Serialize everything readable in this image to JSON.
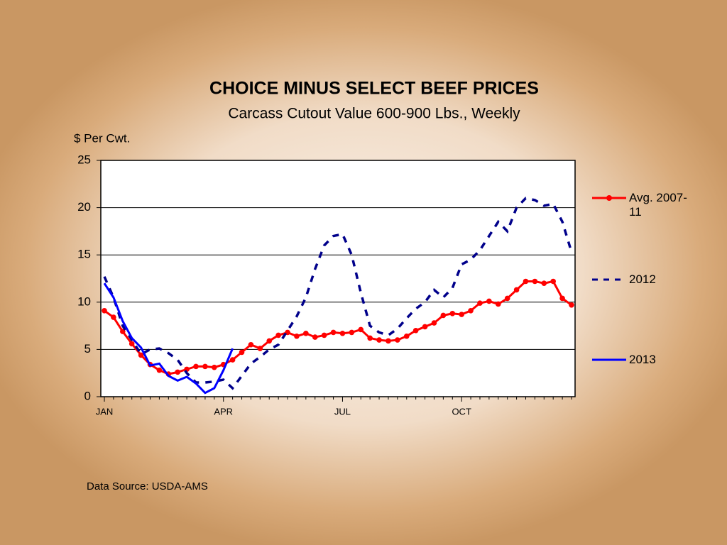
{
  "chart_data": {
    "type": "line",
    "title": "CHOICE  MINUS  SELECT  BEEF  PRICES",
    "subtitle": "Carcass Cutout Value 600-900 Lbs., Weekly",
    "y_label": "$ Per Cwt.",
    "source": "Data Source: USDA-AMS",
    "categories": [
      "JAN",
      null,
      null,
      null,
      null,
      null,
      null,
      null,
      null,
      null,
      null,
      null,
      null,
      "APR",
      null,
      null,
      null,
      null,
      null,
      null,
      null,
      null,
      null,
      null,
      null,
      null,
      "JUL",
      null,
      null,
      null,
      null,
      null,
      null,
      null,
      null,
      null,
      null,
      null,
      null,
      "OCT",
      null,
      null,
      null,
      null,
      null,
      null,
      null,
      null,
      null,
      null,
      null,
      null
    ],
    "ylim": [
      0,
      25
    ],
    "yticks": [
      0,
      5,
      10,
      15,
      20,
      25
    ],
    "grid": true,
    "legend": "right",
    "series": [
      {
        "name": "Avg. 2007-11",
        "color": "#ff0000",
        "style": "solid-markers",
        "values": [
          9.1,
          8.4,
          6.9,
          5.6,
          4.4,
          3.4,
          2.8,
          2.4,
          2.6,
          2.9,
          3.2,
          3.2,
          3.1,
          3.4,
          3.9,
          4.7,
          5.5,
          5.1,
          5.9,
          6.5,
          6.8,
          6.4,
          6.7,
          6.3,
          6.5,
          6.8,
          6.7,
          6.8,
          7.1,
          6.2,
          6.0,
          5.9,
          6.0,
          6.4,
          7.0,
          7.4,
          7.8,
          8.6,
          8.8,
          8.7,
          9.1,
          9.9,
          10.1,
          9.8,
          10.4,
          11.3,
          12.2,
          12.2,
          12.0,
          12.2,
          10.4,
          9.7
        ]
      },
      {
        "name": "2012",
        "color": "#00008b",
        "style": "dashed",
        "values": [
          12.7,
          10.5,
          7.5,
          6.0,
          4.5,
          5.0,
          5.1,
          4.6,
          3.9,
          2.5,
          1.5,
          1.5,
          1.6,
          1.8,
          0.9,
          2.2,
          3.5,
          4.2,
          5.0,
          5.5,
          7.0,
          8.5,
          10.5,
          13.5,
          16.0,
          17.0,
          17.2,
          15.0,
          11.0,
          7.5,
          6.8,
          6.5,
          7.2,
          8.3,
          9.3,
          10.0,
          11.3,
          10.5,
          11.5,
          14.0,
          14.5,
          15.5,
          17.0,
          18.5,
          17.5,
          20.0,
          21.0,
          20.8,
          20.2,
          20.4,
          18.5,
          15.3
        ]
      },
      {
        "name": "2013",
        "color": "#0000ff",
        "style": "solid",
        "values": [
          12.0,
          10.5,
          8.0,
          6.2,
          5.2,
          3.3,
          3.5,
          2.2,
          1.7,
          2.1,
          1.4,
          0.4,
          0.9,
          2.8,
          5.1,
          null,
          null,
          null,
          null,
          null,
          null,
          null,
          null,
          null,
          null,
          null,
          null,
          null,
          null,
          null,
          null,
          null,
          null,
          null,
          null,
          null,
          null,
          null,
          null,
          null,
          null,
          null,
          null,
          null,
          null,
          null,
          null,
          null,
          null,
          null,
          null,
          null
        ]
      }
    ]
  }
}
